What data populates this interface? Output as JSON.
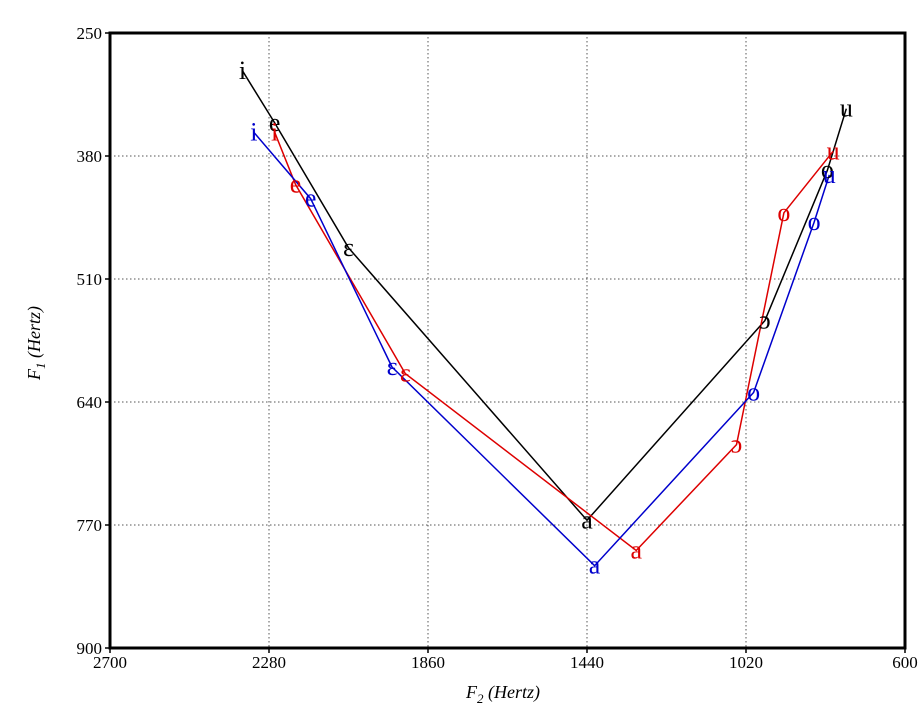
{
  "chart_data": {
    "type": "line",
    "title": "",
    "xlabel": {
      "symbol": "F",
      "subscript": "2",
      "unit": "(Hertz)"
    },
    "ylabel": {
      "symbol": "F",
      "subscript": "1",
      "unit": "(Hertz)"
    },
    "xlim": [
      2700,
      600
    ],
    "ylim": [
      250,
      900
    ],
    "x_reversed": true,
    "y_reversed": true,
    "xticks": [
      2700,
      2280,
      1860,
      1440,
      1020,
      600
    ],
    "yticks": [
      250,
      380,
      510,
      640,
      770,
      900
    ],
    "xtick_labels": [
      "2700",
      "2280",
      "1860",
      "1440",
      "1020",
      "600"
    ],
    "ytick_labels": [
      "250",
      "380",
      "510",
      "640",
      "770",
      "900"
    ],
    "grid": true,
    "legend": "none",
    "series": [
      {
        "color": "#000000",
        "points": [
          {
            "label": "i",
            "x": 2350,
            "y": 290
          },
          {
            "label": "e",
            "x": 2265,
            "y": 345
          },
          {
            "label": "ɛ",
            "x": 2070,
            "y": 477
          },
          {
            "label": "a",
            "x": 1440,
            "y": 765
          },
          {
            "label": "ɔ",
            "x": 970,
            "y": 554
          },
          {
            "label": "o",
            "x": 805,
            "y": 395
          },
          {
            "label": "u",
            "x": 755,
            "y": 330
          }
        ]
      },
      {
        "color": "#dd0000",
        "points": [
          {
            "label": "i",
            "x": 2265,
            "y": 355
          },
          {
            "label": "e",
            "x": 2210,
            "y": 410
          },
          {
            "label": "ɛ",
            "x": 1920,
            "y": 610
          },
          {
            "label": "a",
            "x": 1310,
            "y": 797
          },
          {
            "label": "ɔ",
            "x": 1045,
            "y": 685
          },
          {
            "label": "o",
            "x": 920,
            "y": 440
          },
          {
            "label": "u",
            "x": 790,
            "y": 375
          }
        ]
      },
      {
        "color": "#0000cc",
        "points": [
          {
            "label": "i",
            "x": 2320,
            "y": 355
          },
          {
            "label": "e",
            "x": 2170,
            "y": 425
          },
          {
            "label": "ɛ",
            "x": 1955,
            "y": 603
          },
          {
            "label": "a",
            "x": 1420,
            "y": 813
          },
          {
            "label": "o",
            "x": 1000,
            "y": 630
          },
          {
            "label": "o",
            "x": 840,
            "y": 450
          },
          {
            "label": "u",
            "x": 800,
            "y": 400
          }
        ]
      }
    ]
  }
}
